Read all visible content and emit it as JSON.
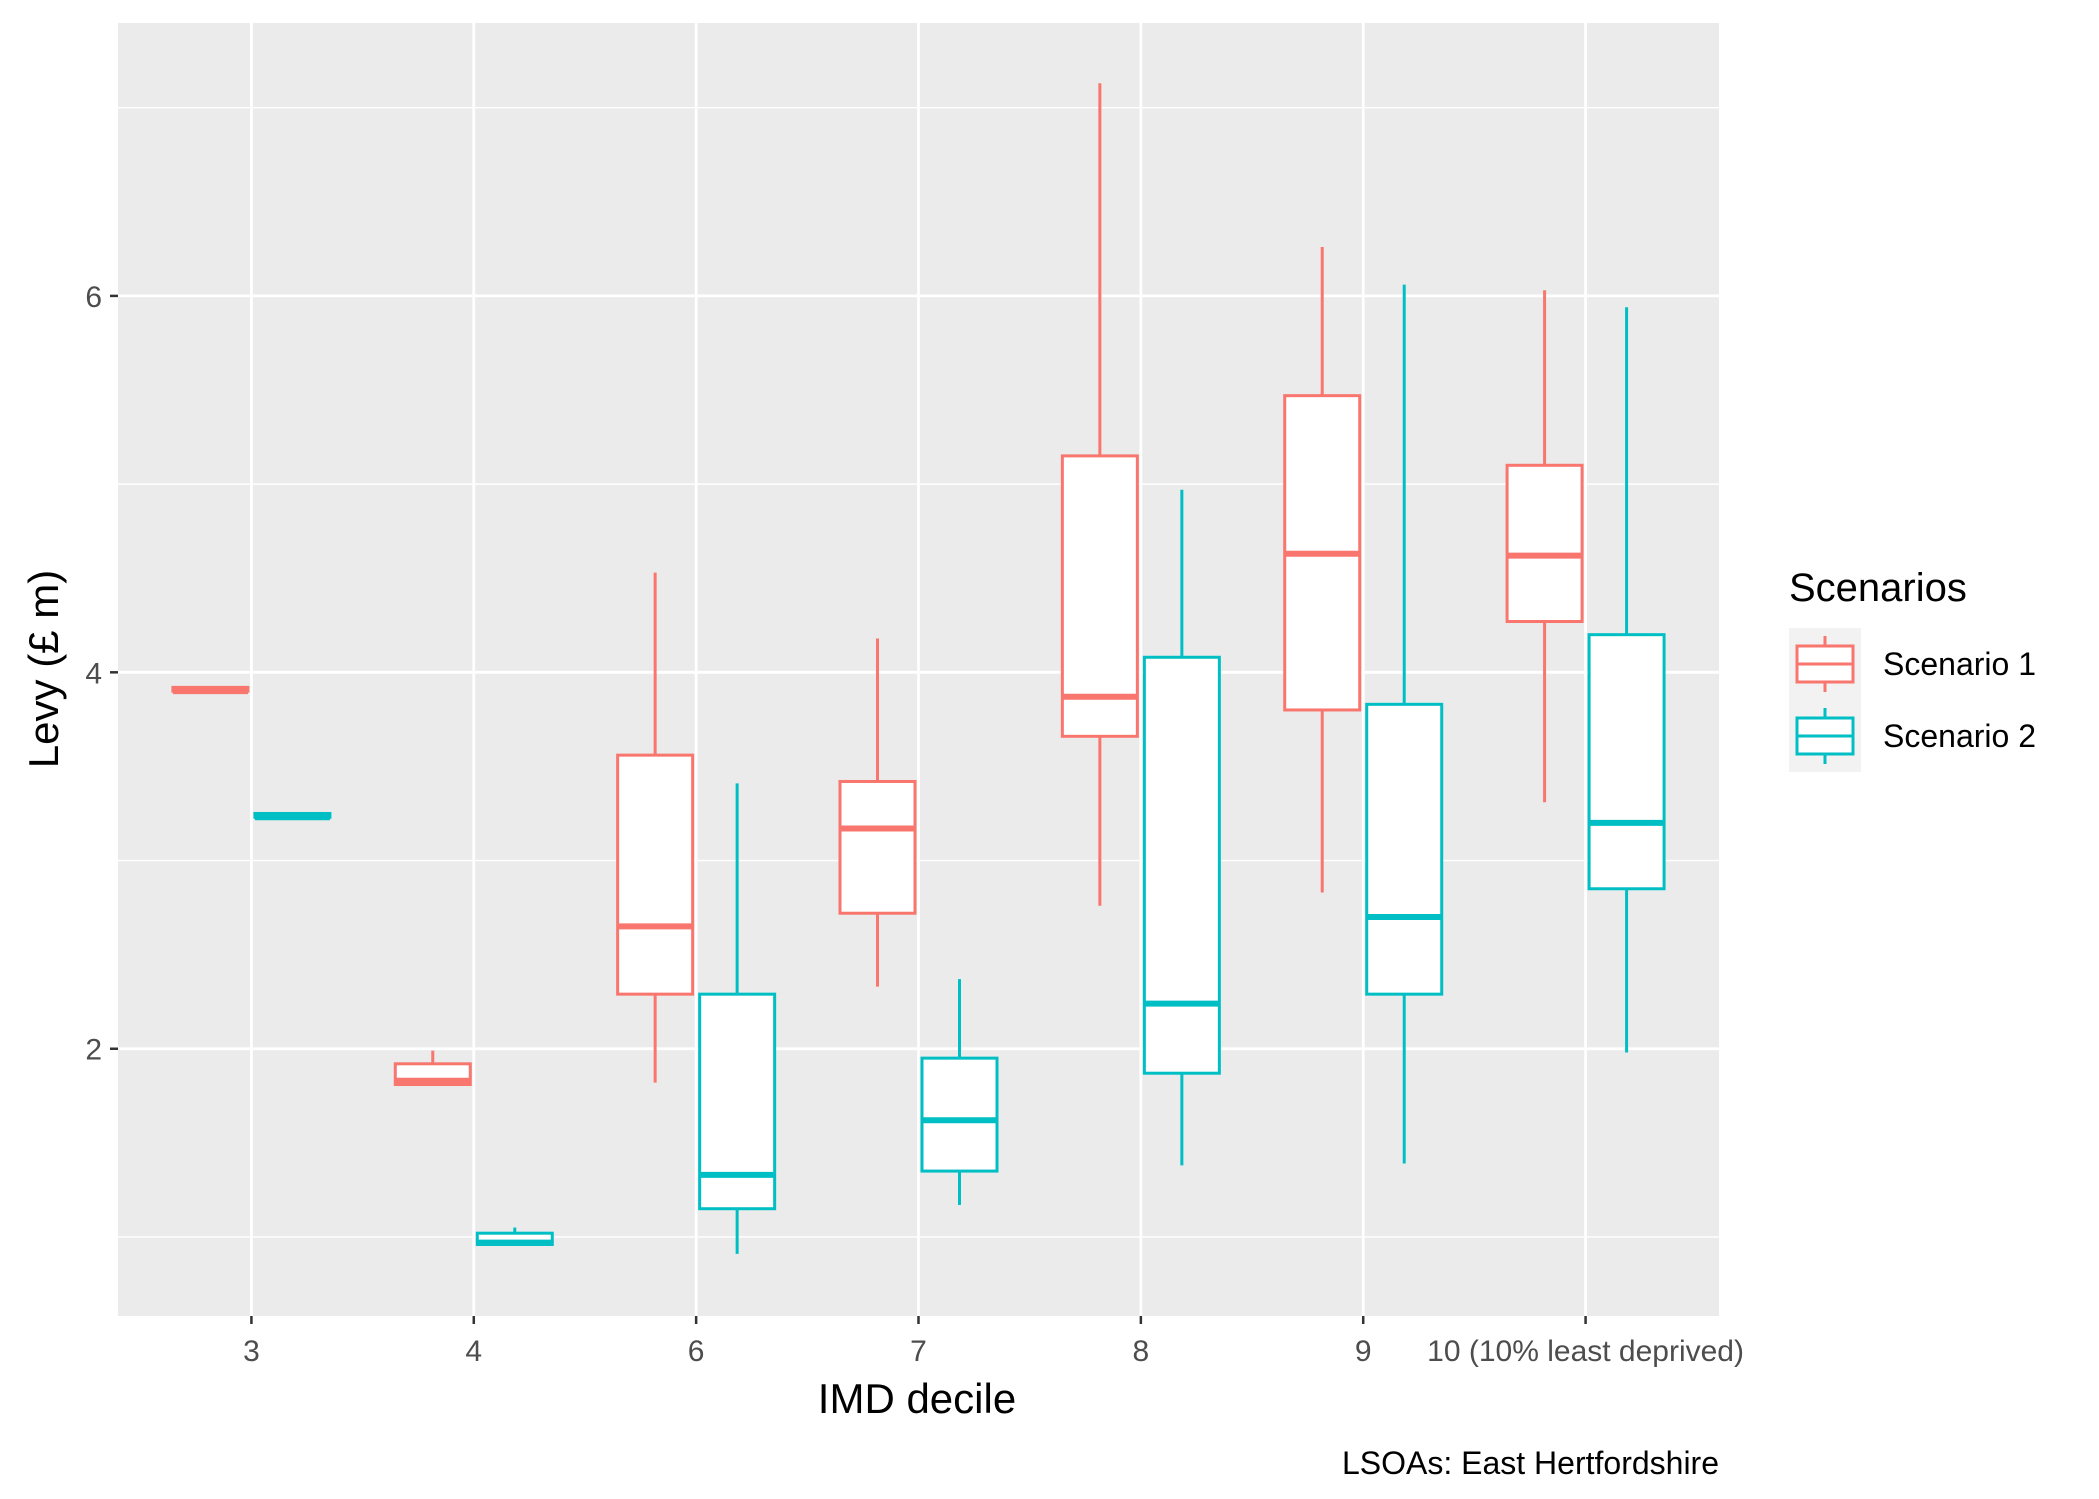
{
  "chart_data": {
    "type": "boxplot",
    "title": "",
    "xlabel": "IMD decile",
    "ylabel": "Levy (£ m)",
    "caption": "LSOAs: East Hertfordshire",
    "categories": [
      "3",
      "4",
      "6",
      "7",
      "8",
      "9",
      "10 (10% least deprived)"
    ],
    "y_ticks": [
      2,
      4,
      6
    ],
    "ylim": [
      0.58,
      7.45
    ],
    "grid": true,
    "legend": {
      "title": "Scenarios",
      "position": "right"
    },
    "colors": {
      "panel": "#ebebeb",
      "grid": "#ffffff",
      "tick": "#333333"
    },
    "series": [
      {
        "name": "Scenario 1",
        "color": "#f8766d",
        "boxes": [
          {
            "category": "3",
            "min": 3.9,
            "q1": 3.9,
            "median": 3.9,
            "q3": 3.92,
            "max": 3.92
          },
          {
            "category": "4",
            "min": 1.81,
            "q1": 1.81,
            "median": 1.83,
            "q3": 1.92,
            "max": 1.99
          },
          {
            "category": "6",
            "min": 1.82,
            "q1": 2.29,
            "median": 2.65,
            "q3": 3.56,
            "max": 4.53
          },
          {
            "category": "7",
            "min": 2.33,
            "q1": 2.72,
            "median": 3.17,
            "q3": 3.42,
            "max": 4.18
          },
          {
            "category": "8",
            "min": 2.76,
            "q1": 3.66,
            "median": 3.87,
            "q3": 5.15,
            "max": 7.13
          },
          {
            "category": "9",
            "min": 2.83,
            "q1": 3.8,
            "median": 4.63,
            "q3": 5.47,
            "max": 6.26
          },
          {
            "category": "10 (10% least deprived)",
            "min": 3.31,
            "q1": 4.27,
            "median": 4.62,
            "q3": 5.1,
            "max": 6.03
          }
        ]
      },
      {
        "name": "Scenario 2",
        "color": "#00bfc4",
        "boxes": [
          {
            "category": "3",
            "min": 3.23,
            "q1": 3.23,
            "median": 3.23,
            "q3": 3.25,
            "max": 3.25
          },
          {
            "category": "4",
            "min": 0.96,
            "q1": 0.96,
            "median": 0.97,
            "q3": 1.02,
            "max": 1.05
          },
          {
            "category": "6",
            "min": 0.91,
            "q1": 1.15,
            "median": 1.33,
            "q3": 2.29,
            "max": 3.41
          },
          {
            "category": "7",
            "min": 1.17,
            "q1": 1.35,
            "median": 1.62,
            "q3": 1.95,
            "max": 2.37
          },
          {
            "category": "8",
            "min": 1.38,
            "q1": 1.87,
            "median": 2.24,
            "q3": 4.08,
            "max": 4.97
          },
          {
            "category": "9",
            "min": 1.39,
            "q1": 2.29,
            "median": 2.7,
            "q3": 3.83,
            "max": 6.06
          },
          {
            "category": "10 (10% least deprived)",
            "min": 1.98,
            "q1": 2.85,
            "median": 3.2,
            "q3": 4.2,
            "max": 5.94
          }
        ]
      }
    ]
  }
}
